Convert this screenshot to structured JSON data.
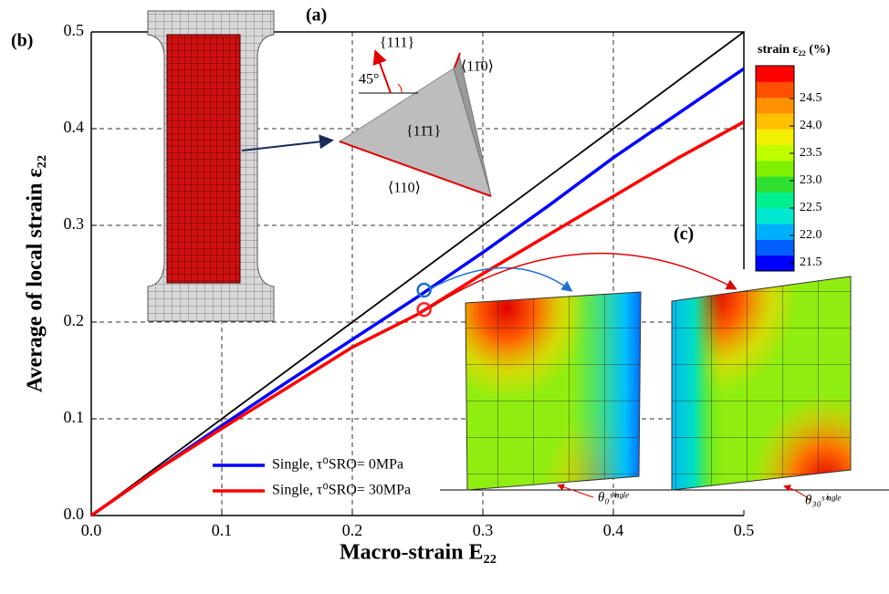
{
  "chart_data": {
    "type": "line",
    "x_label": "Macro-strain E₂₂",
    "y_label": "Average of local strain ε₂₂",
    "x": [
      0,
      0.05,
      0.1,
      0.15,
      0.2,
      0.25,
      0.3,
      0.35,
      0.4,
      0.45,
      0.5
    ],
    "series": [
      {
        "name": "Single, τ⁰SRO= 0MPa",
        "color": "#0000ff",
        "values": [
          0,
          0.047,
          0.093,
          0.138,
          0.182,
          0.226,
          0.272,
          0.32,
          0.37,
          0.416,
          0.462
        ]
      },
      {
        "name": "Single, τ⁰SRO= 30MPa",
        "color": "#ff0000",
        "values": [
          0,
          0.047,
          0.09,
          0.132,
          0.174,
          0.208,
          0.25,
          0.29,
          0.33,
          0.37,
          0.407
        ]
      }
    ],
    "reference_line": {
      "x": [
        0,
        0.5
      ],
      "values": [
        0,
        0.5
      ],
      "color": "#000000"
    },
    "highlights": [
      {
        "x": 0.255,
        "y": 0.233,
        "color": "#1f6fd0"
      },
      {
        "x": 0.255,
        "y": 0.213,
        "color": "#ff2020"
      }
    ],
    "xlim": [
      0,
      0.5
    ],
    "ylim": [
      0,
      0.5
    ],
    "xticks": [
      {
        "value": 0,
        "label": "0.0"
      },
      0.1,
      0.2,
      0.3,
      0.4,
      0.5
    ],
    "yticks": [
      {
        "value": 0,
        "label": "0.0"
      },
      0.1,
      0.2,
      0.3,
      0.4,
      0.5
    ],
    "grid": true,
    "colorbar": {
      "title": "strain ε₂₂ (%)",
      "lim": [
        21.35,
        25.1
      ],
      "colors": [
        "#0000ff",
        "#0060ff",
        "#00b0ff",
        "#00e8d0",
        "#00f090",
        "#30e030",
        "#80f000",
        "#c0ff00",
        "#f0f000",
        "#ffc000",
        "#ff9000",
        "#ff5000",
        "#ff0000"
      ],
      "ticks": [
        24.5,
        {
          "value": 24,
          "label": "24.0"
        },
        23.5,
        {
          "value": 23,
          "label": "23.0"
        },
        22.5,
        {
          "value": 22,
          "label": "22.0"
        },
        21.5
      ]
    },
    "panel_labels": [
      "(a)",
      "(b)",
      "(c)"
    ],
    "inset_labels": [
      "{111}",
      "45°",
      "⟨11̄0⟩",
      "{11̄1}",
      "⟨110⟩"
    ],
    "contour_labels": [
      "θ₀ˢⁱⁿᵍˡᵉ",
      "θ₃₀ˢⁱⁿᵍˡᵉ"
    ]
  }
}
